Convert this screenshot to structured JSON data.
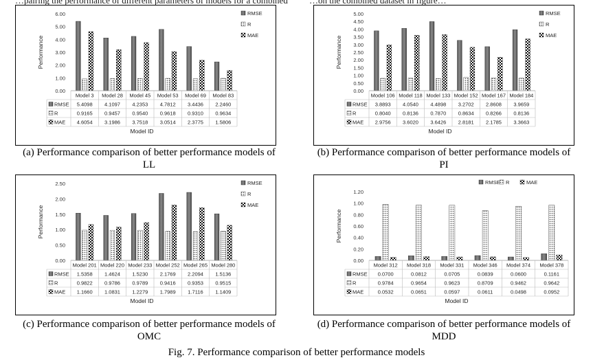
{
  "page": {
    "top_text_left": "…pairing the performance of different parameters of models for a combined dataset…",
    "top_text_right": "…on the combined dataset in figure…",
    "figure_caption": "Fig. 7. Performance comparison of better performance models"
  },
  "panels": [
    {
      "caption_line1": "(a) Performance comparison of better performance models of",
      "caption_line2": "LL"
    },
    {
      "caption_line1": "(b) Performance comparison of better performance models of",
      "caption_line2": "PI"
    },
    {
      "caption_line1": "(c) Performance comparison of better performance models of",
      "caption_line2": "OMC"
    },
    {
      "caption_line1": "(d) Performance comparison of better performance models of",
      "caption_line2": "MDD"
    }
  ],
  "chart_data": [
    {
      "type": "bar",
      "title": "",
      "xlabel": "Model ID",
      "ylabel": "Performance",
      "ylim": [
        0,
        6
      ],
      "yticks": [
        "0.00",
        "1.00",
        "2.00",
        "3.00",
        "4.00",
        "5.00",
        "6.00"
      ],
      "grid": false,
      "legend_placement": "right-vertical",
      "categories": [
        "Model 3",
        "Model 28",
        "Model 45",
        "Model 53",
        "Model 69",
        "Model 83"
      ],
      "series": [
        {
          "name": "RMSE",
          "pattern": "solid",
          "values": [
            5.4098,
            4.1097,
            4.2353,
            4.7812,
            3.4436,
            2.246
          ],
          "labels": [
            "5.4098",
            "4.1097",
            "4.2353",
            "4.7812",
            "3.4436",
            "2.2460"
          ]
        },
        {
          "name": "R",
          "pattern": "dots",
          "values": [
            0.9165,
            0.9457,
            0.954,
            0.9618,
            0.931,
            0.9634
          ],
          "labels": [
            "0.9165",
            "0.9457",
            "0.9540",
            "0.9618",
            "0.9310",
            "0.9634"
          ]
        },
        {
          "name": "MAE",
          "pattern": "checker",
          "values": [
            4.6054,
            3.1986,
            3.7518,
            3.0514,
            2.3775,
            1.5806
          ],
          "labels": [
            "4.6054",
            "3.1986",
            "3.7518",
            "3.0514",
            "2.3775",
            "1.5806"
          ]
        }
      ]
    },
    {
      "type": "bar",
      "title": "",
      "xlabel": "Model ID",
      "ylabel": "Performance",
      "ylim": [
        0,
        5
      ],
      "yticks": [
        "0.00",
        "0.50",
        "1.00",
        "1.50",
        "2.00",
        "2.50",
        "3.00",
        "3.50",
        "4.00",
        "4.50",
        "5.00"
      ],
      "grid": false,
      "legend_placement": "right-vertical",
      "categories": [
        "Model 106",
        "Model 118",
        "Model 133",
        "Model 152",
        "Model 167",
        "Model 184"
      ],
      "series": [
        {
          "name": "RMSE",
          "pattern": "solid",
          "values": [
            3.8893,
            4.054,
            4.4898,
            3.2702,
            2.8608,
            3.9659
          ],
          "labels": [
            "3.8893",
            "4.0540",
            "4.4898",
            "3.2702",
            "2.8608",
            "3.9659"
          ]
        },
        {
          "name": "R",
          "pattern": "dots",
          "values": [
            0.804,
            0.8136,
            0.787,
            0.8634,
            0.8266,
            0.8136
          ],
          "labels": [
            "0.8040",
            "0.8136",
            "0.7870",
            "0.8634",
            "0.8266",
            "0.8136"
          ]
        },
        {
          "name": "MAE",
          "pattern": "checker",
          "values": [
            2.9756,
            3.602,
            3.6426,
            2.8181,
            2.1785,
            3.3663
          ],
          "labels": [
            "2.9756",
            "3.6020",
            "3.6426",
            "2.8181",
            "2.1785",
            "3.3663"
          ]
        }
      ]
    },
    {
      "type": "bar",
      "title": "",
      "xlabel": "Model ID",
      "ylabel": "Performance",
      "ylim": [
        0,
        2.5
      ],
      "yticks": [
        "0.00",
        "0.50",
        "1.00",
        "1.50",
        "2.00",
        "2.50"
      ],
      "grid": false,
      "legend_placement": "right-vertical",
      "categories": [
        "Model 201",
        "Model 220",
        "Model 233",
        "Model 252",
        "Model 265",
        "Model 280"
      ],
      "series": [
        {
          "name": "RMSE",
          "pattern": "solid",
          "values": [
            1.5358,
            1.4624,
            1.523,
            2.1769,
            2.2094,
            1.5136
          ],
          "labels": [
            "1.5358",
            "1.4624",
            "1.5230",
            "2.1769",
            "2.2094",
            "1.5136"
          ]
        },
        {
          "name": "R",
          "pattern": "dots",
          "values": [
            0.9822,
            0.9786,
            0.9789,
            0.9416,
            0.9353,
            0.9515
          ],
          "labels": [
            "0.9822",
            "0.9786",
            "0.9789",
            "0.9416",
            "0.9353",
            "0.9515"
          ]
        },
        {
          "name": "MAE",
          "pattern": "checker",
          "values": [
            1.166,
            1.0831,
            1.2279,
            1.7989,
            1.7116,
            1.1409
          ],
          "labels": [
            "1.1660",
            "1.0831",
            "1.2279",
            "1.7989",
            "1.7116",
            "1.1409"
          ]
        }
      ]
    },
    {
      "type": "bar",
      "title": "",
      "xlabel": "Model ID",
      "ylabel": "Performance",
      "ylim": [
        0,
        1.2
      ],
      "yticks": [
        "0.00",
        "0.20",
        "0.40",
        "0.60",
        "0.80",
        "1.00",
        "1.20"
      ],
      "grid": false,
      "legend_placement": "top-horizontal",
      "categories": [
        "Model 312",
        "Model 318",
        "Model 331",
        "Model 346",
        "Model 374",
        "Model 378"
      ],
      "series": [
        {
          "name": "RMSE",
          "pattern": "solid",
          "values": [
            0.07,
            0.0812,
            0.0705,
            0.0839,
            0.06,
            0.1161
          ],
          "labels": [
            "0.0700",
            "0.0812",
            "0.0705",
            "0.0839",
            "0.0600",
            "0.1161"
          ]
        },
        {
          "name": "R",
          "pattern": "dots",
          "values": [
            0.9784,
            0.9654,
            0.9623,
            0.8709,
            0.9462,
            0.9642
          ],
          "labels": [
            "0.9784",
            "0.9654",
            "0.9623",
            "0.8709",
            "0.9462",
            "0.9642"
          ]
        },
        {
          "name": "MAE",
          "pattern": "checker",
          "values": [
            0.0532,
            0.0651,
            0.0597,
            0.0611,
            0.0498,
            0.0952
          ],
          "labels": [
            "0.0532",
            "0.0651",
            "0.0597",
            "0.0611",
            "0.0498",
            "0.0952"
          ]
        }
      ]
    }
  ]
}
